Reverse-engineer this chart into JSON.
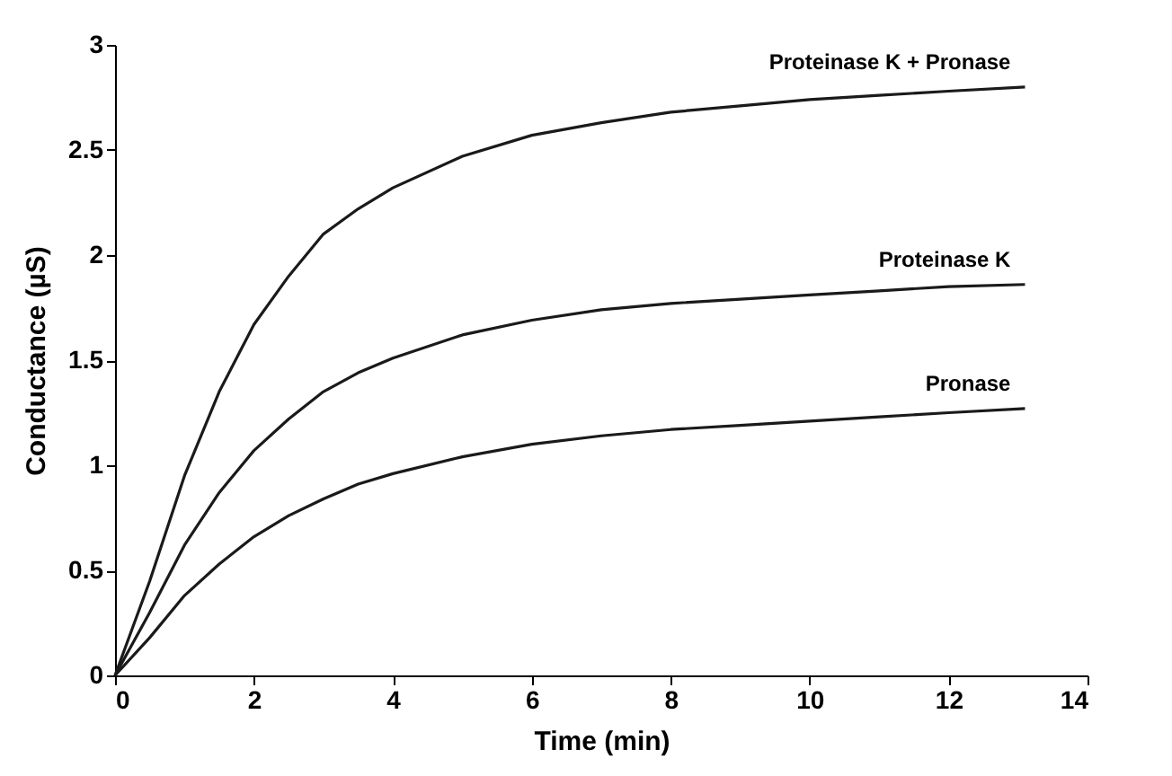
{
  "chart_data": {
    "type": "line",
    "xlabel": "Time (min)",
    "ylabel": "Conductance (µS)",
    "xlim": [
      0,
      14
    ],
    "xticks": [
      0,
      2,
      4,
      6,
      8,
      10,
      12,
      14
    ],
    "ylim": [
      0,
      3
    ],
    "yticks": [
      0,
      0.5,
      1,
      1.5,
      2,
      2.5,
      3
    ],
    "grid": false,
    "legend": false,
    "x": [
      0,
      0.5,
      1,
      1.5,
      2,
      2.5,
      3,
      3.5,
      4,
      5,
      6,
      7,
      8,
      9,
      10,
      11,
      12,
      13.1
    ],
    "series": [
      {
        "name": "Proteinase K + Pronase",
        "color": "#1a1a1a",
        "values": [
          0,
          0.45,
          0.95,
          1.35,
          1.67,
          1.9,
          2.1,
          2.22,
          2.32,
          2.47,
          2.57,
          2.63,
          2.68,
          2.71,
          2.74,
          2.76,
          2.78,
          2.8
        ]
      },
      {
        "name": "Proteinase K",
        "color": "#1a1a1a",
        "values": [
          0,
          0.3,
          0.62,
          0.87,
          1.07,
          1.22,
          1.35,
          1.44,
          1.51,
          1.62,
          1.69,
          1.74,
          1.77,
          1.79,
          1.81,
          1.83,
          1.85,
          1.86
        ]
      },
      {
        "name": "Pronase",
        "color": "#1a1a1a",
        "values": [
          0,
          0.18,
          0.38,
          0.53,
          0.66,
          0.76,
          0.84,
          0.91,
          0.96,
          1.04,
          1.1,
          1.14,
          1.17,
          1.19,
          1.21,
          1.23,
          1.25,
          1.27
        ]
      }
    ]
  }
}
